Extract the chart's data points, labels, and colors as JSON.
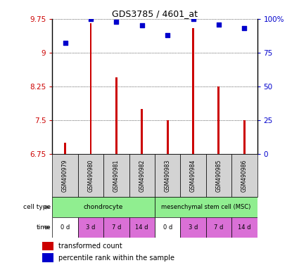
{
  "title": "GDS3785 / 4601_at",
  "samples": [
    "GSM490979",
    "GSM490980",
    "GSM490981",
    "GSM490982",
    "GSM490983",
    "GSM490984",
    "GSM490985",
    "GSM490986"
  ],
  "transformed_count": [
    7.0,
    9.65,
    8.45,
    7.75,
    7.5,
    9.55,
    8.25,
    7.5
  ],
  "percentile_rank": [
    82,
    100,
    98,
    95,
    88,
    100,
    96,
    93
  ],
  "ylim_left": [
    6.75,
    9.75
  ],
  "ylim_right": [
    0,
    100
  ],
  "yticks_left": [
    6.75,
    7.5,
    8.25,
    9.0,
    9.75
  ],
  "yticks_right": [
    0,
    25,
    50,
    75,
    100
  ],
  "ytick_labels_left": [
    "6.75",
    "7.5",
    "8.25",
    "9",
    "9.75"
  ],
  "ytick_labels_right": [
    "0",
    "25",
    "50",
    "75",
    "100%"
  ],
  "cell_type_groups": [
    {
      "label": "chondrocyte",
      "start": 0,
      "end": 4,
      "color": "#90ee90"
    },
    {
      "label": "mesenchymal stem cell (MSC)",
      "start": 4,
      "end": 8,
      "color": "#90ee90"
    }
  ],
  "time_labels": [
    "0 d",
    "3 d",
    "7 d",
    "14 d",
    "0 d",
    "3 d",
    "7 d",
    "14 d"
  ],
  "time_colors": [
    "#ffffff",
    "#da70d6",
    "#da70d6",
    "#da70d6",
    "#ffffff",
    "#da70d6",
    "#da70d6",
    "#da70d6"
  ],
  "bar_color": "#cc0000",
  "dot_color": "#0000cc",
  "label_color_left": "#cc0000",
  "label_color_right": "#0000cc",
  "sample_bg_color": "#d3d3d3",
  "legend_bar_label": "transformed count",
  "legend_dot_label": "percentile rank within the sample",
  "bar_width": 0.08
}
